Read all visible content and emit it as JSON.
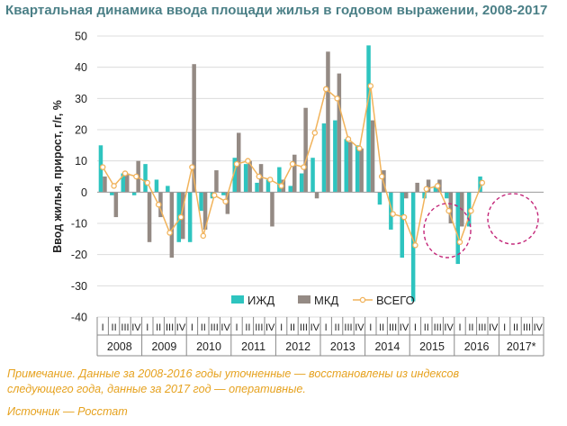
{
  "title": "Квартальная динамика ввода площади жилья в годовом выражении, 2008-2017",
  "notes": {
    "line1": "Примечание. Данные за 2008-2016 годы уточненные — восстановлены из индексов",
    "line2": "следующего года, данные за 2017 год — оперативные.",
    "source": "Источник — Росстат"
  },
  "colors": {
    "izhd": "#2ec4bf",
    "mkd": "#948a84",
    "total": "#f1b35b",
    "highlight_circle": "#c4287a",
    "title": "#4a7f86",
    "note": "#e6a21f"
  },
  "chart_data": {
    "type": "bar",
    "ylabel": "Ввод жилья, прирост, г/г, %",
    "ylim": [
      -40,
      50
    ],
    "yticks": [
      50,
      40,
      30,
      20,
      10,
      0,
      -10,
      -20,
      -30,
      -40
    ],
    "grid": true,
    "legend_position": "bottom-center",
    "years": [
      "2008",
      "2009",
      "2010",
      "2011",
      "2012",
      "2013",
      "2014",
      "2015",
      "2016",
      "2017*"
    ],
    "quarters": [
      "I",
      "II",
      "III",
      "IV"
    ],
    "categories": [
      "2008 I",
      "2008 II",
      "2008 III",
      "2008 IV",
      "2009 I",
      "2009 II",
      "2009 III",
      "2009 IV",
      "2010 I",
      "2010 II",
      "2010 III",
      "2010 IV",
      "2011 I",
      "2011 II",
      "2011 III",
      "2011 IV",
      "2012 I",
      "2012 II",
      "2012 III",
      "2012 IV",
      "2013 I",
      "2013 II",
      "2013 III",
      "2013 IV",
      "2014 I",
      "2014 II",
      "2014 III",
      "2014 IV",
      "2015 I",
      "2015 II",
      "2015 III",
      "2015 IV",
      "2016 I",
      "2016 II",
      "2016 III",
      "2016 IV",
      "2017* I",
      "2017* II",
      "2017* III",
      "2017* IV"
    ],
    "series": [
      {
        "name": "ИЖД",
        "kind": "bar",
        "values": [
          15,
          -1,
          6,
          -1,
          9,
          4,
          2,
          -16,
          -16,
          -6,
          -2,
          -1,
          11,
          9,
          3,
          4,
          8,
          2,
          6,
          11,
          22,
          23,
          17,
          15,
          47,
          -4,
          -12,
          -21,
          -35,
          -2,
          2,
          -2,
          -23,
          -11,
          5,
          null,
          null,
          null,
          null,
          null
        ]
      },
      {
        "name": "МКД",
        "kind": "bar",
        "values": [
          5,
          -8,
          6,
          10,
          -16,
          -8,
          -21,
          -15,
          41,
          -12,
          7,
          -7,
          19,
          10,
          9,
          -11,
          4,
          12,
          27,
          -2,
          45,
          38,
          16,
          14,
          23,
          7,
          null,
          -2,
          3,
          4,
          4,
          -10,
          -11,
          0,
          null,
          null,
          null,
          null,
          null,
          null
        ]
      },
      {
        "name": "ВСЕГО",
        "kind": "line",
        "values": [
          8,
          2,
          6,
          5,
          3,
          -4,
          -13,
          -8,
          8,
          -14,
          -1,
          -3,
          9,
          10,
          5,
          4,
          2,
          9,
          8,
          19,
          33,
          30,
          17,
          14,
          34,
          5,
          -7,
          -8,
          -17,
          1,
          2,
          -6,
          -16,
          -6,
          3,
          null,
          null,
          null,
          null,
          null
        ]
      }
    ],
    "highlights": [
      {
        "around": "2015 III – 2015 IV"
      },
      {
        "around": "2016 IV – 2017* II"
      }
    ]
  }
}
